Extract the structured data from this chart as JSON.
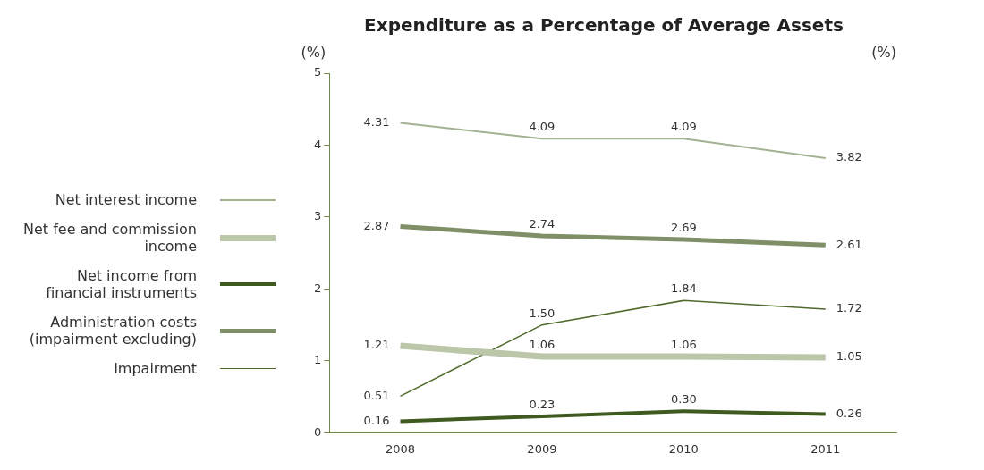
{
  "chart_data": {
    "type": "line",
    "title": "Expenditure as a Percentage of Average Assets",
    "ylabel": "(%)",
    "y2label": "(%)",
    "categories": [
      "2008",
      "2009",
      "2010",
      "2011"
    ],
    "ylim": [
      0,
      5
    ],
    "yticks": [
      0,
      1,
      2,
      3,
      4,
      5
    ],
    "grid": false,
    "legend": "left",
    "marker": "none",
    "series": [
      {
        "name": "Net interest income",
        "color": "#a3b290",
        "values": [
          4.31,
          4.09,
          4.09,
          3.82
        ],
        "value_labels": [
          "4.31",
          "4.09",
          "4.09",
          "3.82"
        ]
      },
      {
        "name": "Net fee and commission income",
        "color": "#bcc7aa",
        "values": [
          1.21,
          1.06,
          1.06,
          1.05
        ],
        "value_labels": [
          "1.21",
          "1.06",
          "1.06",
          "1.05"
        ]
      },
      {
        "name": "Net income from financial instruments",
        "color": "#3f5a1f",
        "values": [
          0.16,
          0.23,
          0.3,
          0.26
        ],
        "value_labels": [
          "0.16",
          "0.23",
          "0.30",
          "0.26"
        ]
      },
      {
        "name": "Administration costs (impairment excluding)",
        "color": "#7f8f68",
        "values": [
          2.87,
          2.74,
          2.69,
          2.61
        ],
        "value_labels": [
          "2.87",
          "2.74",
          "2.69",
          "2.61"
        ]
      },
      {
        "name": "Impairment",
        "color": "#4f6b2c",
        "values": [
          0.51,
          1.5,
          1.84,
          1.72
        ],
        "value_labels": [
          "0.51",
          "1.50",
          "1.84",
          "1.72"
        ]
      }
    ]
  }
}
